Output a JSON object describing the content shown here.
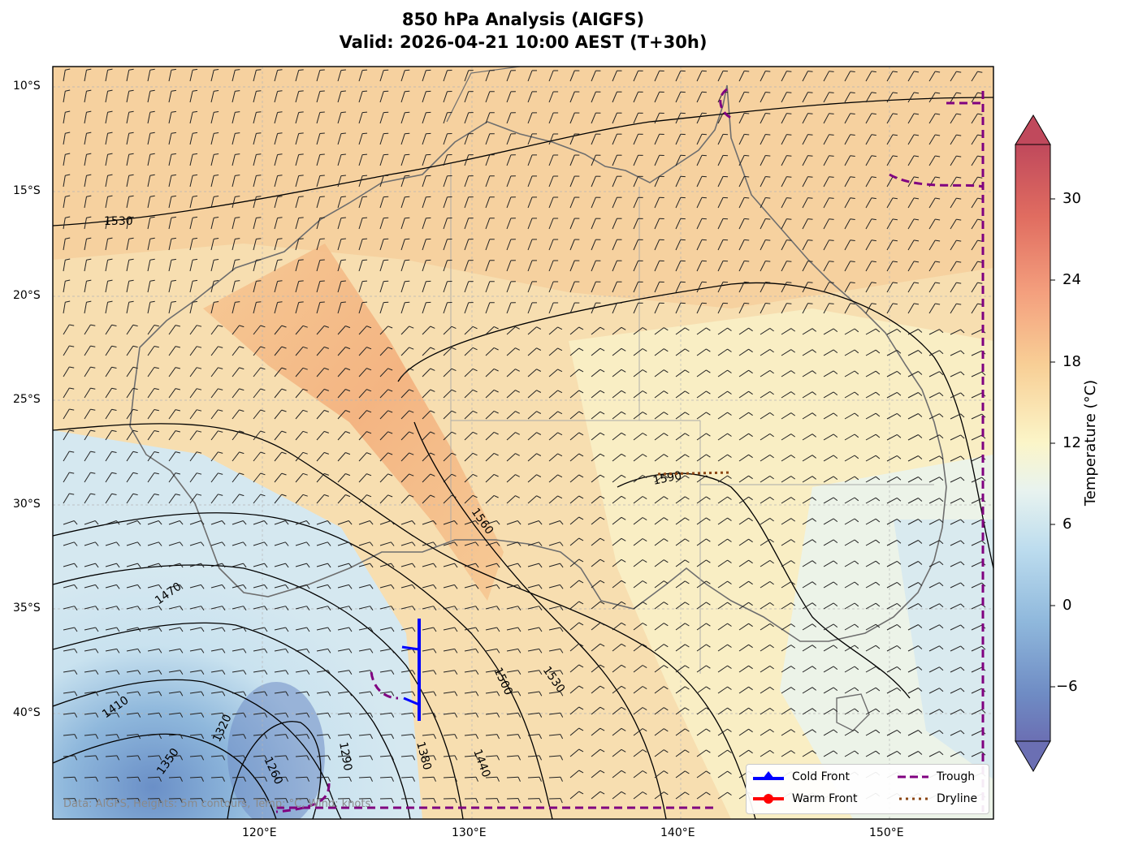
{
  "title_line1": "850 hPa Analysis (AIGFS)",
  "title_line2": "Valid: 2026-04-21 10:00 AEST (T+30h)",
  "lat_labels": [
    "10°S",
    "15°S",
    "20°S",
    "25°S",
    "30°S",
    "35°S",
    "40°S"
  ],
  "lon_labels": [
    "120°E",
    "130°E",
    "140°E",
    "150°E"
  ],
  "contour_labels": [
    "1530",
    "1590",
    "1560",
    "1530",
    "1500",
    "1470",
    "1410",
    "1350",
    "1320",
    "1260",
    "1290",
    "1380",
    "1440"
  ],
  "colorbar": {
    "title": "Temperature (°C)",
    "ticks": [
      "30",
      "24",
      "18",
      "12",
      "6",
      "0",
      "−6"
    ]
  },
  "legend": {
    "cold_front": "Cold Front",
    "warm_front": "Warm Front",
    "trough": "Trough",
    "dryline": "Dryline"
  },
  "footer": "Data: AIGFS, Heights: 5m contours, Temp: °C, Wind: knots",
  "colors": {
    "cold_front": "#0000ff",
    "warm_front": "#ff0000",
    "trough": "#800080",
    "dryline": "#8b4513",
    "warm": "#f4b07a",
    "cool": "#7db7dc"
  }
}
